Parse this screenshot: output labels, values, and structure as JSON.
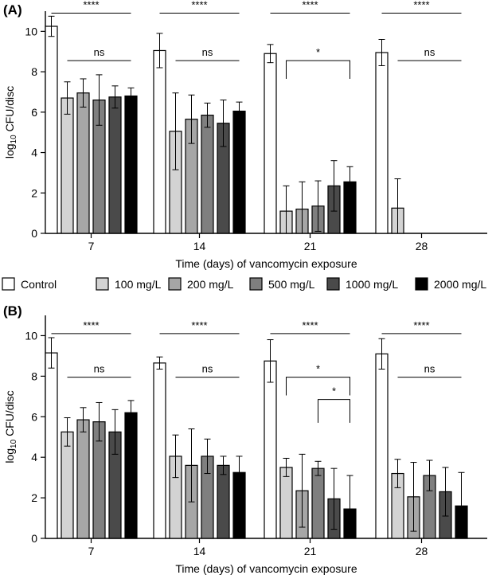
{
  "legend": {
    "items": [
      {
        "label": "Control",
        "color": "#ffffff"
      },
      {
        "label": "100 mg/L",
        "color": "#d3d3d3"
      },
      {
        "label": "200 mg/L",
        "color": "#a6a6a6"
      },
      {
        "label": "500 mg/L",
        "color": "#7f7f7f"
      },
      {
        "label": "1000 mg/L",
        "color": "#4a4a4a"
      },
      {
        "label": "2000 mg/L",
        "color": "#000000"
      }
    ]
  },
  "chart_data": [
    {
      "panel": "(A)",
      "type": "bar",
      "xlabel": "Time (days) of vancomycin exposure",
      "ylabel": {
        "base": "log",
        "sub": "10",
        "rest": " CFU/disc"
      },
      "ylim": [
        0,
        11
      ],
      "yticks": [
        "0",
        "2",
        "4",
        "6",
        "8",
        "10"
      ],
      "categories": [
        "7",
        "14",
        "21",
        "28"
      ],
      "series": [
        {
          "name": "Control",
          "values": [
            10.25,
            9.05,
            8.9,
            8.95
          ],
          "errors": [
            0.5,
            0.85,
            0.45,
            0.65
          ]
        },
        {
          "name": "100 mg/L",
          "values": [
            6.7,
            5.05,
            1.1,
            1.25
          ],
          "errors": [
            0.8,
            1.9,
            1.25,
            1.45
          ]
        },
        {
          "name": "200 mg/L",
          "values": [
            6.95,
            5.65,
            1.2,
            null
          ],
          "errors": [
            0.7,
            1.2,
            1.35,
            null
          ]
        },
        {
          "name": "500 mg/L",
          "values": [
            6.6,
            5.85,
            1.35,
            null
          ],
          "errors": [
            1.25,
            0.6,
            1.25,
            null
          ]
        },
        {
          "name": "1000 mg/L",
          "values": [
            6.75,
            5.45,
            2.35,
            null
          ],
          "errors": [
            0.55,
            1.15,
            1.25,
            null
          ]
        },
        {
          "name": "2000 mg/L",
          "values": [
            6.8,
            6.05,
            2.55,
            null
          ],
          "errors": [
            0.4,
            0.45,
            0.75,
            null
          ]
        }
      ],
      "annotations": [
        {
          "label": "****",
          "group": 0,
          "from_bar": 0,
          "to_bar": 5,
          "y": 10.9,
          "style": "line"
        },
        {
          "label": "ns",
          "group": 0,
          "from_bar": 1,
          "to_bar": 5,
          "y": 8.55,
          "style": "line"
        },
        {
          "label": "****",
          "group": 1,
          "from_bar": 0,
          "to_bar": 5,
          "y": 10.9,
          "style": "line"
        },
        {
          "label": "ns",
          "group": 1,
          "from_bar": 1,
          "to_bar": 5,
          "y": 8.55,
          "style": "line"
        },
        {
          "label": "****",
          "group": 2,
          "from_bar": 0,
          "to_bar": 5,
          "y": 10.9,
          "style": "line"
        },
        {
          "label": "*",
          "group": 2,
          "from_bar": 1,
          "to_bar": 5,
          "y": 8.55,
          "style": "bracket",
          "drop": 0.9
        },
        {
          "label": "****",
          "group": 3,
          "from_bar": 0,
          "to_bar": 5,
          "y": 10.9,
          "style": "line"
        },
        {
          "label": "ns",
          "group": 3,
          "from_bar": 1,
          "to_bar": 5,
          "y": 8.55,
          "style": "line"
        }
      ]
    },
    {
      "panel": "(B)",
      "type": "bar",
      "xlabel": "Time (days) of vancomycin exposure",
      "ylabel": {
        "base": "log",
        "sub": "10",
        "rest": " CFU/disc"
      },
      "ylim": [
        0,
        11
      ],
      "yticks": [
        "0",
        "2",
        "4",
        "6",
        "8",
        "10"
      ],
      "categories": [
        "7",
        "14",
        "21",
        "28"
      ],
      "series": [
        {
          "name": "Control",
          "values": [
            9.15,
            8.65,
            8.75,
            9.1
          ],
          "errors": [
            0.75,
            0.3,
            1.05,
            0.75
          ]
        },
        {
          "name": "100 mg/L",
          "values": [
            5.25,
            4.05,
            3.5,
            3.2
          ],
          "errors": [
            0.7,
            1.05,
            0.45,
            0.7
          ]
        },
        {
          "name": "200 mg/L",
          "values": [
            5.85,
            3.6,
            2.35,
            2.05
          ],
          "errors": [
            0.6,
            1.8,
            1.8,
            1.7
          ]
        },
        {
          "name": "500 mg/L",
          "values": [
            5.75,
            4.05,
            3.45,
            3.1
          ],
          "errors": [
            0.95,
            0.85,
            0.35,
            0.75
          ]
        },
        {
          "name": "1000 mg/L",
          "values": [
            5.25,
            3.6,
            1.95,
            2.3
          ],
          "errors": [
            1.1,
            0.45,
            1.5,
            1.2
          ]
        },
        {
          "name": "2000 mg/L",
          "values": [
            6.2,
            3.25,
            1.45,
            1.6
          ],
          "errors": [
            0.6,
            0.8,
            1.65,
            1.65
          ]
        }
      ],
      "annotations": [
        {
          "label": "****",
          "group": 0,
          "from_bar": 0,
          "to_bar": 5,
          "y": 10.1,
          "style": "line"
        },
        {
          "label": "ns",
          "group": 0,
          "from_bar": 1,
          "to_bar": 5,
          "y": 7.95,
          "style": "line"
        },
        {
          "label": "****",
          "group": 1,
          "from_bar": 0,
          "to_bar": 5,
          "y": 10.1,
          "style": "line"
        },
        {
          "label": "ns",
          "group": 1,
          "from_bar": 1,
          "to_bar": 5,
          "y": 7.95,
          "style": "line"
        },
        {
          "label": "****",
          "group": 2,
          "from_bar": 0,
          "to_bar": 5,
          "y": 10.1,
          "style": "line"
        },
        {
          "label": "*",
          "group": 2,
          "from_bar": 1,
          "to_bar": 5,
          "y": 7.95,
          "style": "bracket",
          "drop": 0.9
        },
        {
          "label": "*",
          "group": 2,
          "from_bar": 3,
          "to_bar": 5,
          "y": 6.85,
          "style": "bracket",
          "drop": 1.15
        },
        {
          "label": "****",
          "group": 3,
          "from_bar": 0,
          "to_bar": 5,
          "y": 10.1,
          "style": "line"
        },
        {
          "label": "ns",
          "group": 3,
          "from_bar": 1,
          "to_bar": 5,
          "y": 7.95,
          "style": "line"
        }
      ]
    }
  ]
}
